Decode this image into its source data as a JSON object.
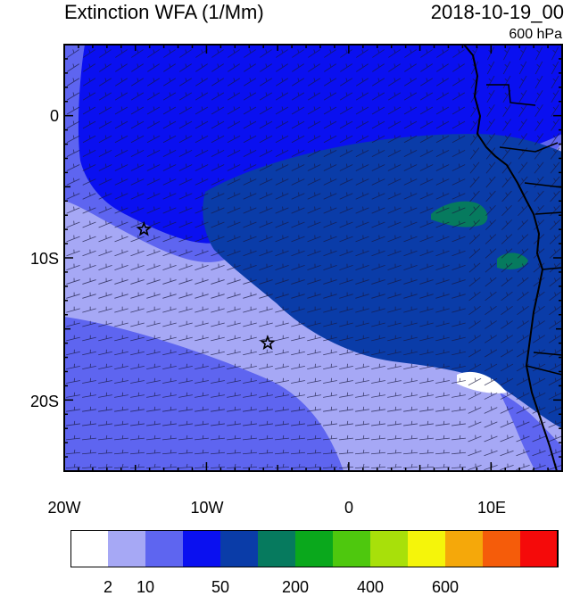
{
  "header": {
    "title": "Extinction WFA (1/Mm)",
    "datetime": "2018-10-19_00",
    "level": "600 hPa"
  },
  "map": {
    "lon_range": [
      -20,
      15
    ],
    "lat_range": [
      -25,
      5
    ],
    "y_ticks": [
      {
        "lat": 0,
        "label": "0"
      },
      {
        "lat": -10,
        "label": "10S"
      },
      {
        "lat": -20,
        "label": "20S"
      }
    ],
    "x_ticks": [
      {
        "lon": -20,
        "label": "20W"
      },
      {
        "lon": -10,
        "label": "10W"
      },
      {
        "lon": 0,
        "label": "0"
      },
      {
        "lon": 10,
        "label": "10E"
      }
    ],
    "markers": [
      {
        "name": "star-marker-1",
        "lon": -14.4,
        "lat": -8.0
      },
      {
        "name": "star-marker-2",
        "lon": -5.7,
        "lat": -16.0
      }
    ],
    "overlay": "wind-barbs"
  },
  "colorbar": {
    "colors": [
      "#ffffff",
      "#a6a8f5",
      "#5e65f0",
      "#0a10f0",
      "#0a3ca8",
      "#067a5e",
      "#0aa81c",
      "#4ec80e",
      "#a8e00a",
      "#f5f50a",
      "#f5a80a",
      "#f55c0a",
      "#f50a0a"
    ],
    "labels": [
      {
        "text": "2",
        "boundary": 1
      },
      {
        "text": "10",
        "boundary": 2
      },
      {
        "text": "50",
        "boundary": 4
      },
      {
        "text": "200",
        "boundary": 6
      },
      {
        "text": "400",
        "boundary": 8
      },
      {
        "text": "600",
        "boundary": 10
      }
    ]
  }
}
